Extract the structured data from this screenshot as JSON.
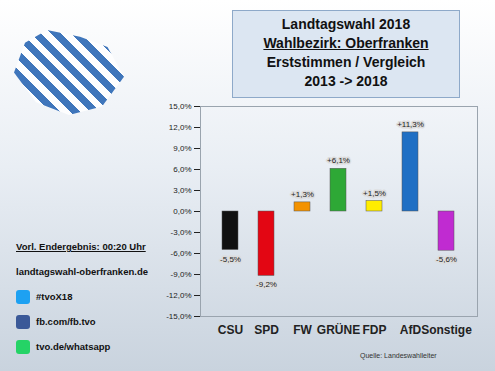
{
  "chart_data": {
    "type": "bar",
    "title": "Landtagswahl 2018",
    "subtitle": [
      "Wahlbezirk: Oberfranken",
      "Erststimmen / Vergleich",
      "2013 -> 2018"
    ],
    "annotations": [
      "Vorl. Endergebnis: 00:20 Uhr",
      "landtagswahl-oberfranken.de",
      "#tvoX18",
      "fb.com/fb.tvo",
      "tvo.de/whatsapp",
      "Quelle: Landeswahlleiter"
    ],
    "categories": [
      "CSU",
      "SPD",
      "FW",
      "GRÜNE",
      "FDP",
      "AfD",
      "Sonstige"
    ],
    "values": [
      -5.5,
      -9.2,
      1.3,
      6.1,
      1.5,
      11.3,
      -5.6
    ],
    "value_labels": [
      "-5,5%",
      "-9,2%",
      "+1,3%",
      "+6,1%",
      "+1,5%",
      "+11,3%",
      "-5,6%"
    ],
    "colors": [
      "#111111",
      "#e30613",
      "#f39200",
      "#2ea836",
      "#ffed00",
      "#1f6fc4",
      "#c02bd1"
    ],
    "ylim": [
      -15,
      15
    ],
    "yticks": [
      {
        "value": -15,
        "label": "-15,0%"
      },
      {
        "value": -12,
        "label": "-12,0%"
      },
      {
        "value": -9,
        "label": "-9,0%"
      },
      {
        "value": -6,
        "label": "-6,0%"
      },
      {
        "value": -3,
        "label": "-3,0%"
      },
      {
        "value": 0,
        "label": "0,0%"
      },
      {
        "value": 3,
        "label": "3,0%"
      },
      {
        "value": 6,
        "label": "6,0%"
      },
      {
        "value": 9,
        "label": "9,0%"
      },
      {
        "value": 12,
        "label": "12,0%"
      },
      {
        "value": 15,
        "label": "15,0%"
      }
    ],
    "grid": false,
    "data_labels": true
  }
}
